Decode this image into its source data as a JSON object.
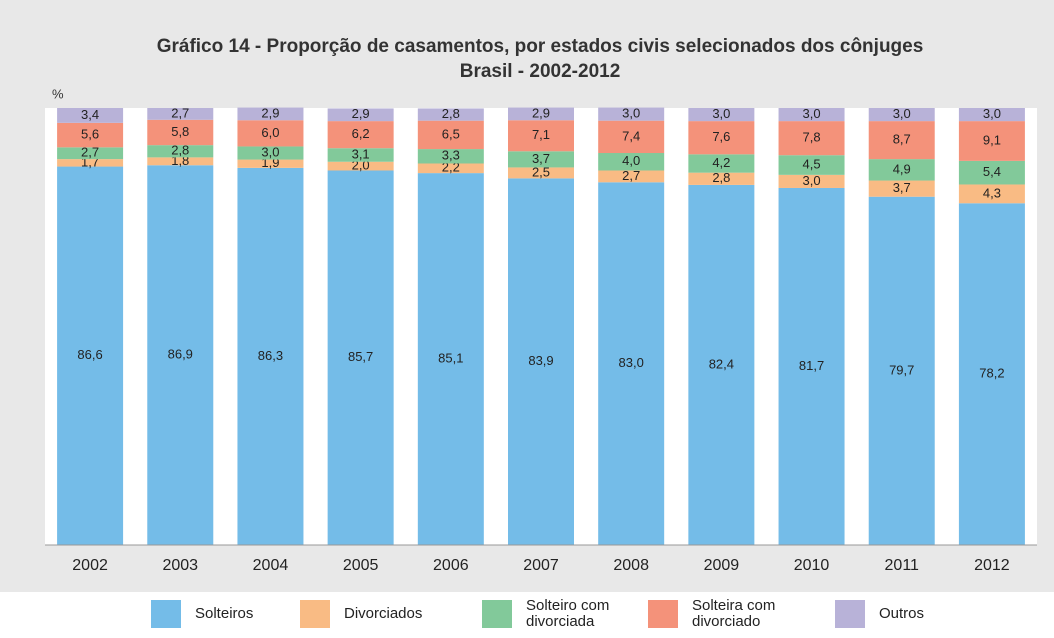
{
  "chart_data": {
    "type": "bar",
    "stacked": true,
    "title": "Gráfico 14 - Proporção de casamentos, por estados civis selecionados dos cônjuges",
    "subtitle": "Brasil - 2002-2012",
    "y_label": "%",
    "categories": [
      "2002",
      "2003",
      "2004",
      "2005",
      "2006",
      "2007",
      "2008",
      "2009",
      "2010",
      "2011",
      "2012"
    ],
    "ylim": [
      0,
      100
    ],
    "series": [
      {
        "name": "Solteiros",
        "color": "#74bce8",
        "values": [
          86.6,
          86.9,
          86.3,
          85.7,
          85.1,
          83.9,
          83.0,
          82.4,
          81.7,
          79.7,
          78.2
        ],
        "value_labels": [
          "86,6",
          "86,9",
          "86,3",
          "85,7",
          "85,1",
          "83,9",
          "83,0",
          "82,4",
          "81,7",
          "79,7",
          "78,2"
        ]
      },
      {
        "name": "Divorciados",
        "color": "#f9bb84",
        "values": [
          1.7,
          1.8,
          1.9,
          2.0,
          2.2,
          2.5,
          2.7,
          2.8,
          3.0,
          3.7,
          4.3
        ],
        "value_labels": [
          "1,7",
          "1,8",
          "1,9",
          "2,0",
          "2,2",
          "2,5",
          "2,7",
          "2,8",
          "3,0",
          "3,7",
          "4,3"
        ]
      },
      {
        "name": "Solteiro com divorciada",
        "color": "#82c99a",
        "values": [
          2.7,
          2.8,
          3.0,
          3.1,
          3.3,
          3.7,
          4.0,
          4.2,
          4.5,
          4.9,
          5.4
        ],
        "value_labels": [
          "2,7",
          "2,8",
          "3,0",
          "3,1",
          "3,3",
          "3,7",
          "4,0",
          "4,2",
          "4,5",
          "4,9",
          "5,4"
        ]
      },
      {
        "name": "Solteira com divorciado",
        "color": "#f4927a",
        "values": [
          5.6,
          5.8,
          6.0,
          6.2,
          6.5,
          7.1,
          7.4,
          7.6,
          7.8,
          8.7,
          9.1
        ],
        "value_labels": [
          "5,6",
          "5,8",
          "6,0",
          "6,2",
          "6,5",
          "7,1",
          "7,4",
          "7,6",
          "7,8",
          "8,7",
          "9,1"
        ]
      },
      {
        "name": "Outros",
        "color": "#b8b2d8",
        "values": [
          3.4,
          2.7,
          2.9,
          2.9,
          2.8,
          2.9,
          3.0,
          3.0,
          3.0,
          3.0,
          3.0
        ],
        "value_labels": [
          "3,4",
          "2,7",
          "2,9",
          "2,9",
          "2,8",
          "2,9",
          "3,0",
          "3,0",
          "3,0",
          "3,0",
          "3,0"
        ]
      }
    ]
  }
}
